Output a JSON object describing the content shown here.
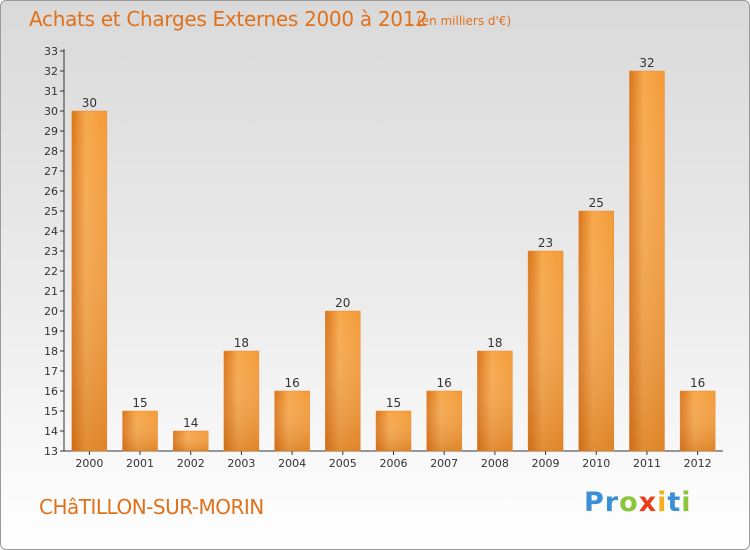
{
  "title": "Achats et Charges Externes 2000 à 2012",
  "unit_note": "(en milliers d'€)",
  "commune": "CHâTILLON-SUR-MORIN",
  "brand": {
    "letters": [
      {
        "char": "P",
        "color": "#3a8fd6"
      },
      {
        "char": "r",
        "color": "#3a8fd6"
      },
      {
        "char": "o",
        "color": "#8cc63f"
      },
      {
        "char": "x",
        "color": "#e8401c"
      },
      {
        "char": "i",
        "color": "#f2b21c"
      },
      {
        "char": "t",
        "color": "#3a8fd6"
      },
      {
        "char": "i",
        "color": "#8cc63f"
      }
    ]
  },
  "colors": {
    "title": "#e0711b",
    "bar_light": "#f7a84c",
    "bar_dark": "#d9751a",
    "axis": "#333333"
  },
  "chart_data": {
    "type": "bar",
    "categories": [
      "2000",
      "2001",
      "2002",
      "2003",
      "2004",
      "2005",
      "2006",
      "2007",
      "2008",
      "2009",
      "2010",
      "2011",
      "2012"
    ],
    "values": [
      30,
      15,
      14,
      18,
      16,
      20,
      15,
      16,
      18,
      23,
      25,
      32,
      16
    ],
    "ylim": [
      13,
      33
    ],
    "yticks": [
      13,
      14,
      15,
      16,
      17,
      18,
      19,
      20,
      21,
      22,
      23,
      24,
      25,
      26,
      27,
      28,
      29,
      30,
      31,
      32,
      33
    ],
    "grid": false,
    "data_labels": true
  }
}
